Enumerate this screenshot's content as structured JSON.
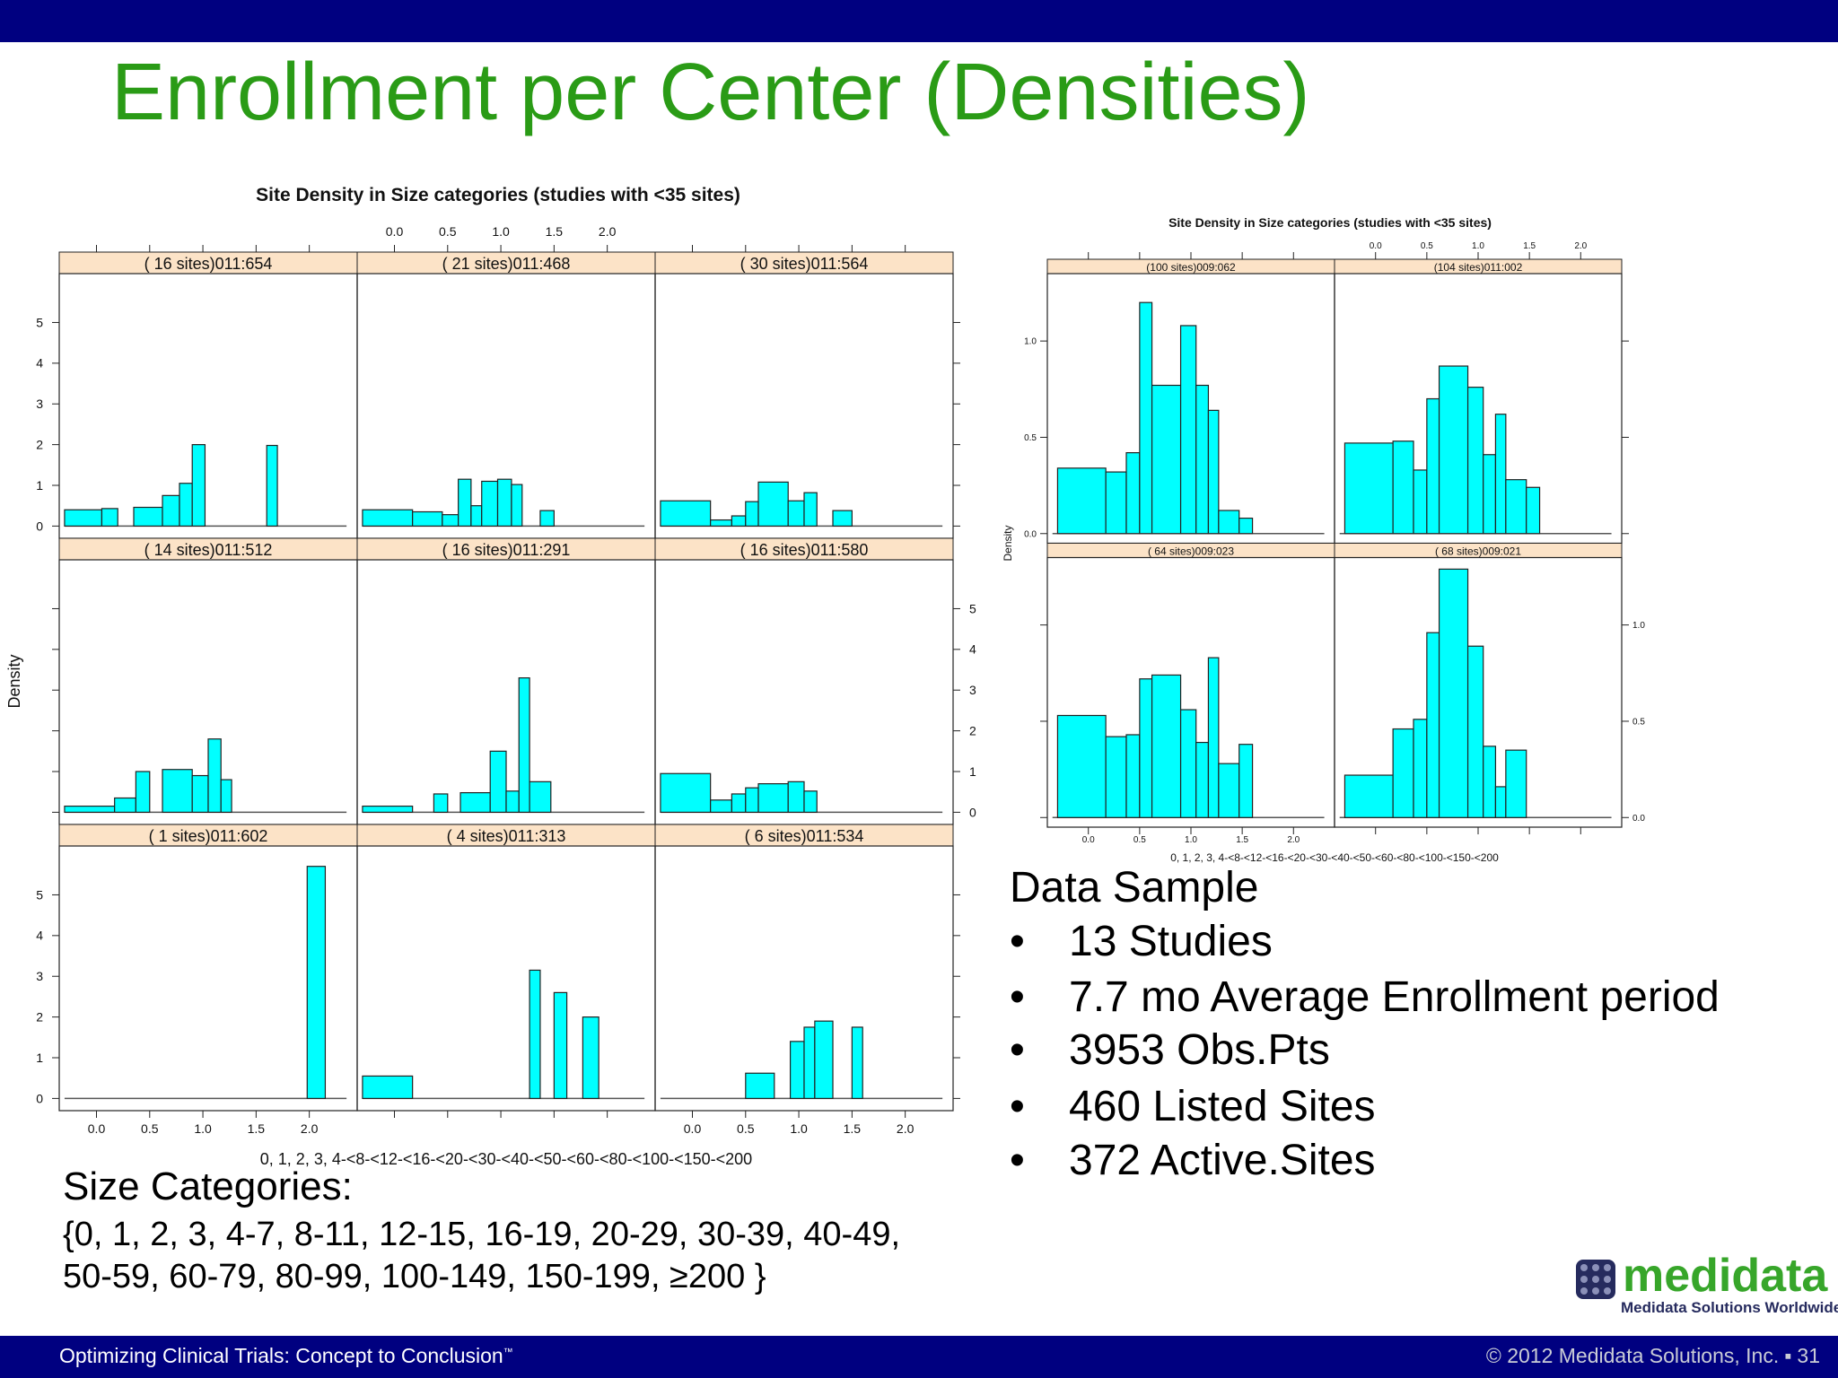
{
  "slide": {
    "title": "Enrollment per Center (Densities)",
    "colors": {
      "bar": "#000080",
      "title": "#2a9b16",
      "strip": "#fce3c7",
      "fill": "#00ffff"
    }
  },
  "chart_data": [
    {
      "type": "bar",
      "title": "Site Density in Size categories (studies with <35 sites)",
      "xlabel": "0, 1, 2, 3, 4-<8-<12-<16-<20-<30-<40-<50-<60-<80-<100-<150-<200",
      "ylabel": "Density",
      "xlim": [
        -0.35,
        2.45
      ],
      "ylim": [
        -0.3,
        6.2
      ],
      "x_ticks": [
        "0.0",
        "0.5",
        "1.0",
        "1.5",
        "2.0"
      ],
      "y_ticks": [
        "0",
        "1",
        "2",
        "3",
        "4",
        "5"
      ],
      "grid": false,
      "layout": "3x3",
      "panels": [
        {
          "name": "( 16 sites)011:654",
          "bars": [
            [
              -0.3,
              0.05,
              0.4
            ],
            [
              0.05,
              0.2,
              0.43
            ],
            [
              0.35,
              0.62,
              0.46
            ],
            [
              0.62,
              0.78,
              0.75
            ],
            [
              0.78,
              0.9,
              1.05
            ],
            [
              0.9,
              1.02,
              2.0
            ],
            [
              1.6,
              1.7,
              1.98
            ]
          ]
        },
        {
          "name": "( 21 sites)011:468",
          "bars": [
            [
              -0.3,
              0.17,
              0.4
            ],
            [
              0.17,
              0.45,
              0.35
            ],
            [
              0.45,
              0.6,
              0.28
            ],
            [
              0.6,
              0.72,
              1.15
            ],
            [
              0.72,
              0.82,
              0.5
            ],
            [
              0.82,
              0.97,
              1.1
            ],
            [
              0.97,
              1.1,
              1.15
            ],
            [
              1.1,
              1.2,
              1.02
            ],
            [
              1.37,
              1.5,
              0.38
            ]
          ]
        },
        {
          "name": "( 30 sites)011:564",
          "bars": [
            [
              -0.3,
              0.17,
              0.62
            ],
            [
              0.17,
              0.37,
              0.15
            ],
            [
              0.37,
              0.5,
              0.25
            ],
            [
              0.5,
              0.62,
              0.6
            ],
            [
              0.62,
              0.9,
              1.08
            ],
            [
              0.9,
              1.05,
              0.62
            ],
            [
              1.05,
              1.17,
              0.82
            ],
            [
              1.32,
              1.5,
              0.38
            ]
          ]
        },
        {
          "name": "( 14 sites)011:512",
          "bars": [
            [
              -0.3,
              0.17,
              0.15
            ],
            [
              0.17,
              0.37,
              0.35
            ],
            [
              0.37,
              0.5,
              1.0
            ],
            [
              0.62,
              0.9,
              1.05
            ],
            [
              0.9,
              1.05,
              0.9
            ],
            [
              1.05,
              1.17,
              1.8
            ],
            [
              1.17,
              1.27,
              0.8
            ]
          ]
        },
        {
          "name": "( 16 sites)011:291",
          "bars": [
            [
              -0.3,
              0.17,
              0.15
            ],
            [
              0.37,
              0.5,
              0.45
            ],
            [
              0.62,
              0.9,
              0.48
            ],
            [
              0.9,
              1.05,
              1.5
            ],
            [
              1.05,
              1.17,
              0.52
            ],
            [
              1.17,
              1.27,
              3.3
            ],
            [
              1.27,
              1.47,
              0.75
            ]
          ]
        },
        {
          "name": "( 16 sites)011:580",
          "bars": [
            [
              -0.3,
              0.17,
              0.95
            ],
            [
              0.17,
              0.37,
              0.3
            ],
            [
              0.37,
              0.5,
              0.45
            ],
            [
              0.5,
              0.62,
              0.6
            ],
            [
              0.62,
              0.9,
              0.7
            ],
            [
              0.9,
              1.05,
              0.75
            ],
            [
              1.05,
              1.17,
              0.52
            ]
          ]
        },
        {
          "name": "( 1 sites)011:602",
          "bars": [
            [
              1.98,
              2.15,
              5.7
            ]
          ]
        },
        {
          "name": "( 4 sites)011:313",
          "bars": [
            [
              -0.3,
              0.17,
              0.55
            ],
            [
              1.27,
              1.37,
              3.15
            ],
            [
              1.5,
              1.62,
              2.6
            ],
            [
              1.77,
              1.92,
              2.0
            ]
          ]
        },
        {
          "name": "( 6 sites)011:534",
          "bars": [
            [
              0.5,
              0.77,
              0.62
            ],
            [
              0.92,
              1.05,
              1.4
            ],
            [
              1.05,
              1.15,
              1.75
            ],
            [
              1.15,
              1.32,
              1.9
            ],
            [
              1.5,
              1.6,
              1.75
            ]
          ]
        }
      ]
    },
    {
      "type": "bar",
      "title": "Site Density in Size categories (studies with <35 sites)",
      "xlabel": "0, 1, 2, 3, 4-<8-<12-<16-<20-<30-<40-<50-<60-<80-<100-<150-<200",
      "ylabel": "Density",
      "xlim": [
        -0.4,
        2.4
      ],
      "ylim": [
        -0.05,
        1.35
      ],
      "x_ticks": [
        "0.0",
        "0.5",
        "1.0",
        "1.5",
        "2.0"
      ],
      "y_ticks": [
        "0.0",
        "0.5",
        "1.0"
      ],
      "grid": false,
      "layout": "2x2",
      "panels": [
        {
          "name": "(100 sites)009:062",
          "bars": [
            [
              -0.3,
              0.17,
              0.34
            ],
            [
              0.17,
              0.37,
              0.32
            ],
            [
              0.37,
              0.5,
              0.42
            ],
            [
              0.5,
              0.62,
              1.2
            ],
            [
              0.62,
              0.9,
              0.77
            ],
            [
              0.9,
              1.05,
              1.08
            ],
            [
              1.05,
              1.17,
              0.77
            ],
            [
              1.17,
              1.27,
              0.64
            ],
            [
              1.27,
              1.47,
              0.12
            ],
            [
              1.47,
              1.6,
              0.08
            ]
          ]
        },
        {
          "name": "(104 sites)011:002",
          "bars": [
            [
              -0.3,
              0.17,
              0.47
            ],
            [
              0.17,
              0.37,
              0.48
            ],
            [
              0.37,
              0.5,
              0.33
            ],
            [
              0.5,
              0.62,
              0.7
            ],
            [
              0.62,
              0.9,
              0.87
            ],
            [
              0.9,
              1.05,
              0.76
            ],
            [
              1.05,
              1.17,
              0.41
            ],
            [
              1.17,
              1.27,
              0.62
            ],
            [
              1.27,
              1.47,
              0.28
            ],
            [
              1.47,
              1.6,
              0.24
            ]
          ]
        },
        {
          "name": "( 64 sites)009:023",
          "bars": [
            [
              -0.3,
              0.17,
              0.53
            ],
            [
              0.17,
              0.37,
              0.42
            ],
            [
              0.37,
              0.5,
              0.43
            ],
            [
              0.5,
              0.62,
              0.72
            ],
            [
              0.62,
              0.9,
              0.74
            ],
            [
              0.9,
              1.05,
              0.56
            ],
            [
              1.05,
              1.17,
              0.39
            ],
            [
              1.17,
              1.27,
              0.83
            ],
            [
              1.27,
              1.47,
              0.28
            ],
            [
              1.47,
              1.6,
              0.38
            ]
          ]
        },
        {
          "name": "( 68 sites)009:021",
          "bars": [
            [
              -0.3,
              0.17,
              0.22
            ],
            [
              0.17,
              0.37,
              0.46
            ],
            [
              0.37,
              0.5,
              0.51
            ],
            [
              0.5,
              0.62,
              0.96
            ],
            [
              0.62,
              0.9,
              1.29
            ],
            [
              0.9,
              1.05,
              0.89
            ],
            [
              1.05,
              1.17,
              0.37
            ],
            [
              1.17,
              1.27,
              0.16
            ],
            [
              1.27,
              1.47,
              0.35
            ]
          ]
        }
      ]
    }
  ],
  "data_sample": {
    "heading": "Data Sample",
    "bullet": "•",
    "items": [
      "13 Studies",
      "7.7 mo Average Enrollment period",
      "3953 Obs.Pts",
      "460 Listed Sites",
      "372 Active.Sites"
    ]
  },
  "size_categories": {
    "label": "Size Categories:",
    "line1": " {0, 1, 2, 3, 4-7, 8-11, 12-15, 16-19, 20-29, 30-39, 40-49,",
    "line2": "50-59, 60-79, 80-99, 100-149, 150-199, ≥200 }"
  },
  "logo": {
    "name": "medidata",
    "tagline": "Medidata Solutions Worldwide",
    "colors": {
      "dots": "#262b5e",
      "text": "#37a62a",
      "tagline": "#262b5e"
    }
  },
  "footer": {
    "left": "Optimizing Clinical Trials: Concept to Conclusion",
    "tm": "™",
    "right": "© 2012 Medidata Solutions, Inc.",
    "separator": "▪",
    "page": "31"
  }
}
